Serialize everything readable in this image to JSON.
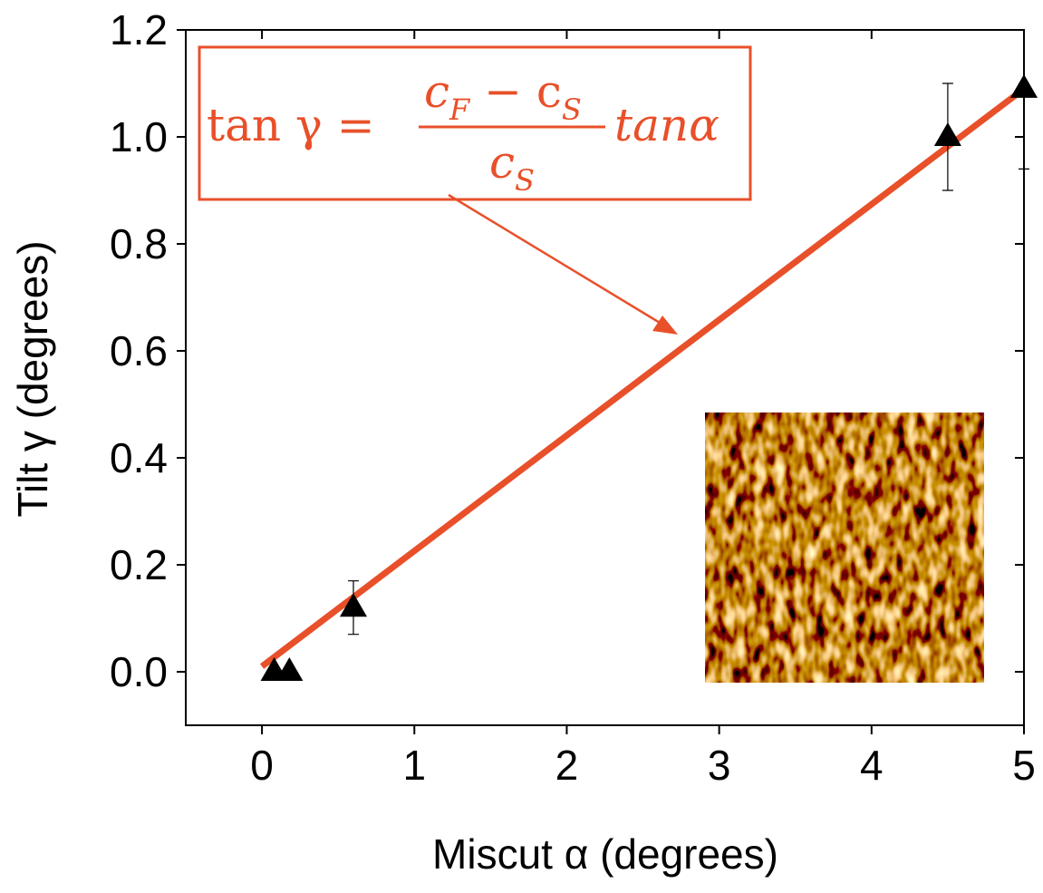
{
  "chart_data": {
    "type": "scatter",
    "xlabel": "Miscut  α (degrees)",
    "ylabel": "Tilt γ (degrees)",
    "xlim": [
      -0.5,
      5
    ],
    "ylim": [
      -0.1,
      1.2
    ],
    "xticks": [
      0,
      1,
      2,
      3,
      4,
      5
    ],
    "yticks": [
      {
        "value": 0,
        "label": "0.0"
      },
      0.2,
      0.4,
      0.6,
      0.8,
      {
        "value": 1,
        "label": "1.0"
      },
      1.2
    ],
    "series": [
      {
        "x": [
          0.08,
          0.18,
          0.6,
          4.5,
          5.0
        ],
        "values": [
          0.0,
          0.0,
          0.12,
          1.0,
          1.09
        ],
        "errors": [
          0,
          0,
          0.05,
          0.1,
          0.15
        ],
        "color": "#000000"
      }
    ],
    "fit": {
      "x": [
        0,
        5
      ],
      "values": [
        0.01,
        1.09
      ],
      "color": "#e8502a"
    },
    "annotation": {
      "lhs": "tan γ =",
      "numerator": [
        "c",
        "F",
        " − c",
        "S"
      ],
      "denominator": [
        "c",
        "S"
      ],
      "rhs": "tanα"
    }
  }
}
